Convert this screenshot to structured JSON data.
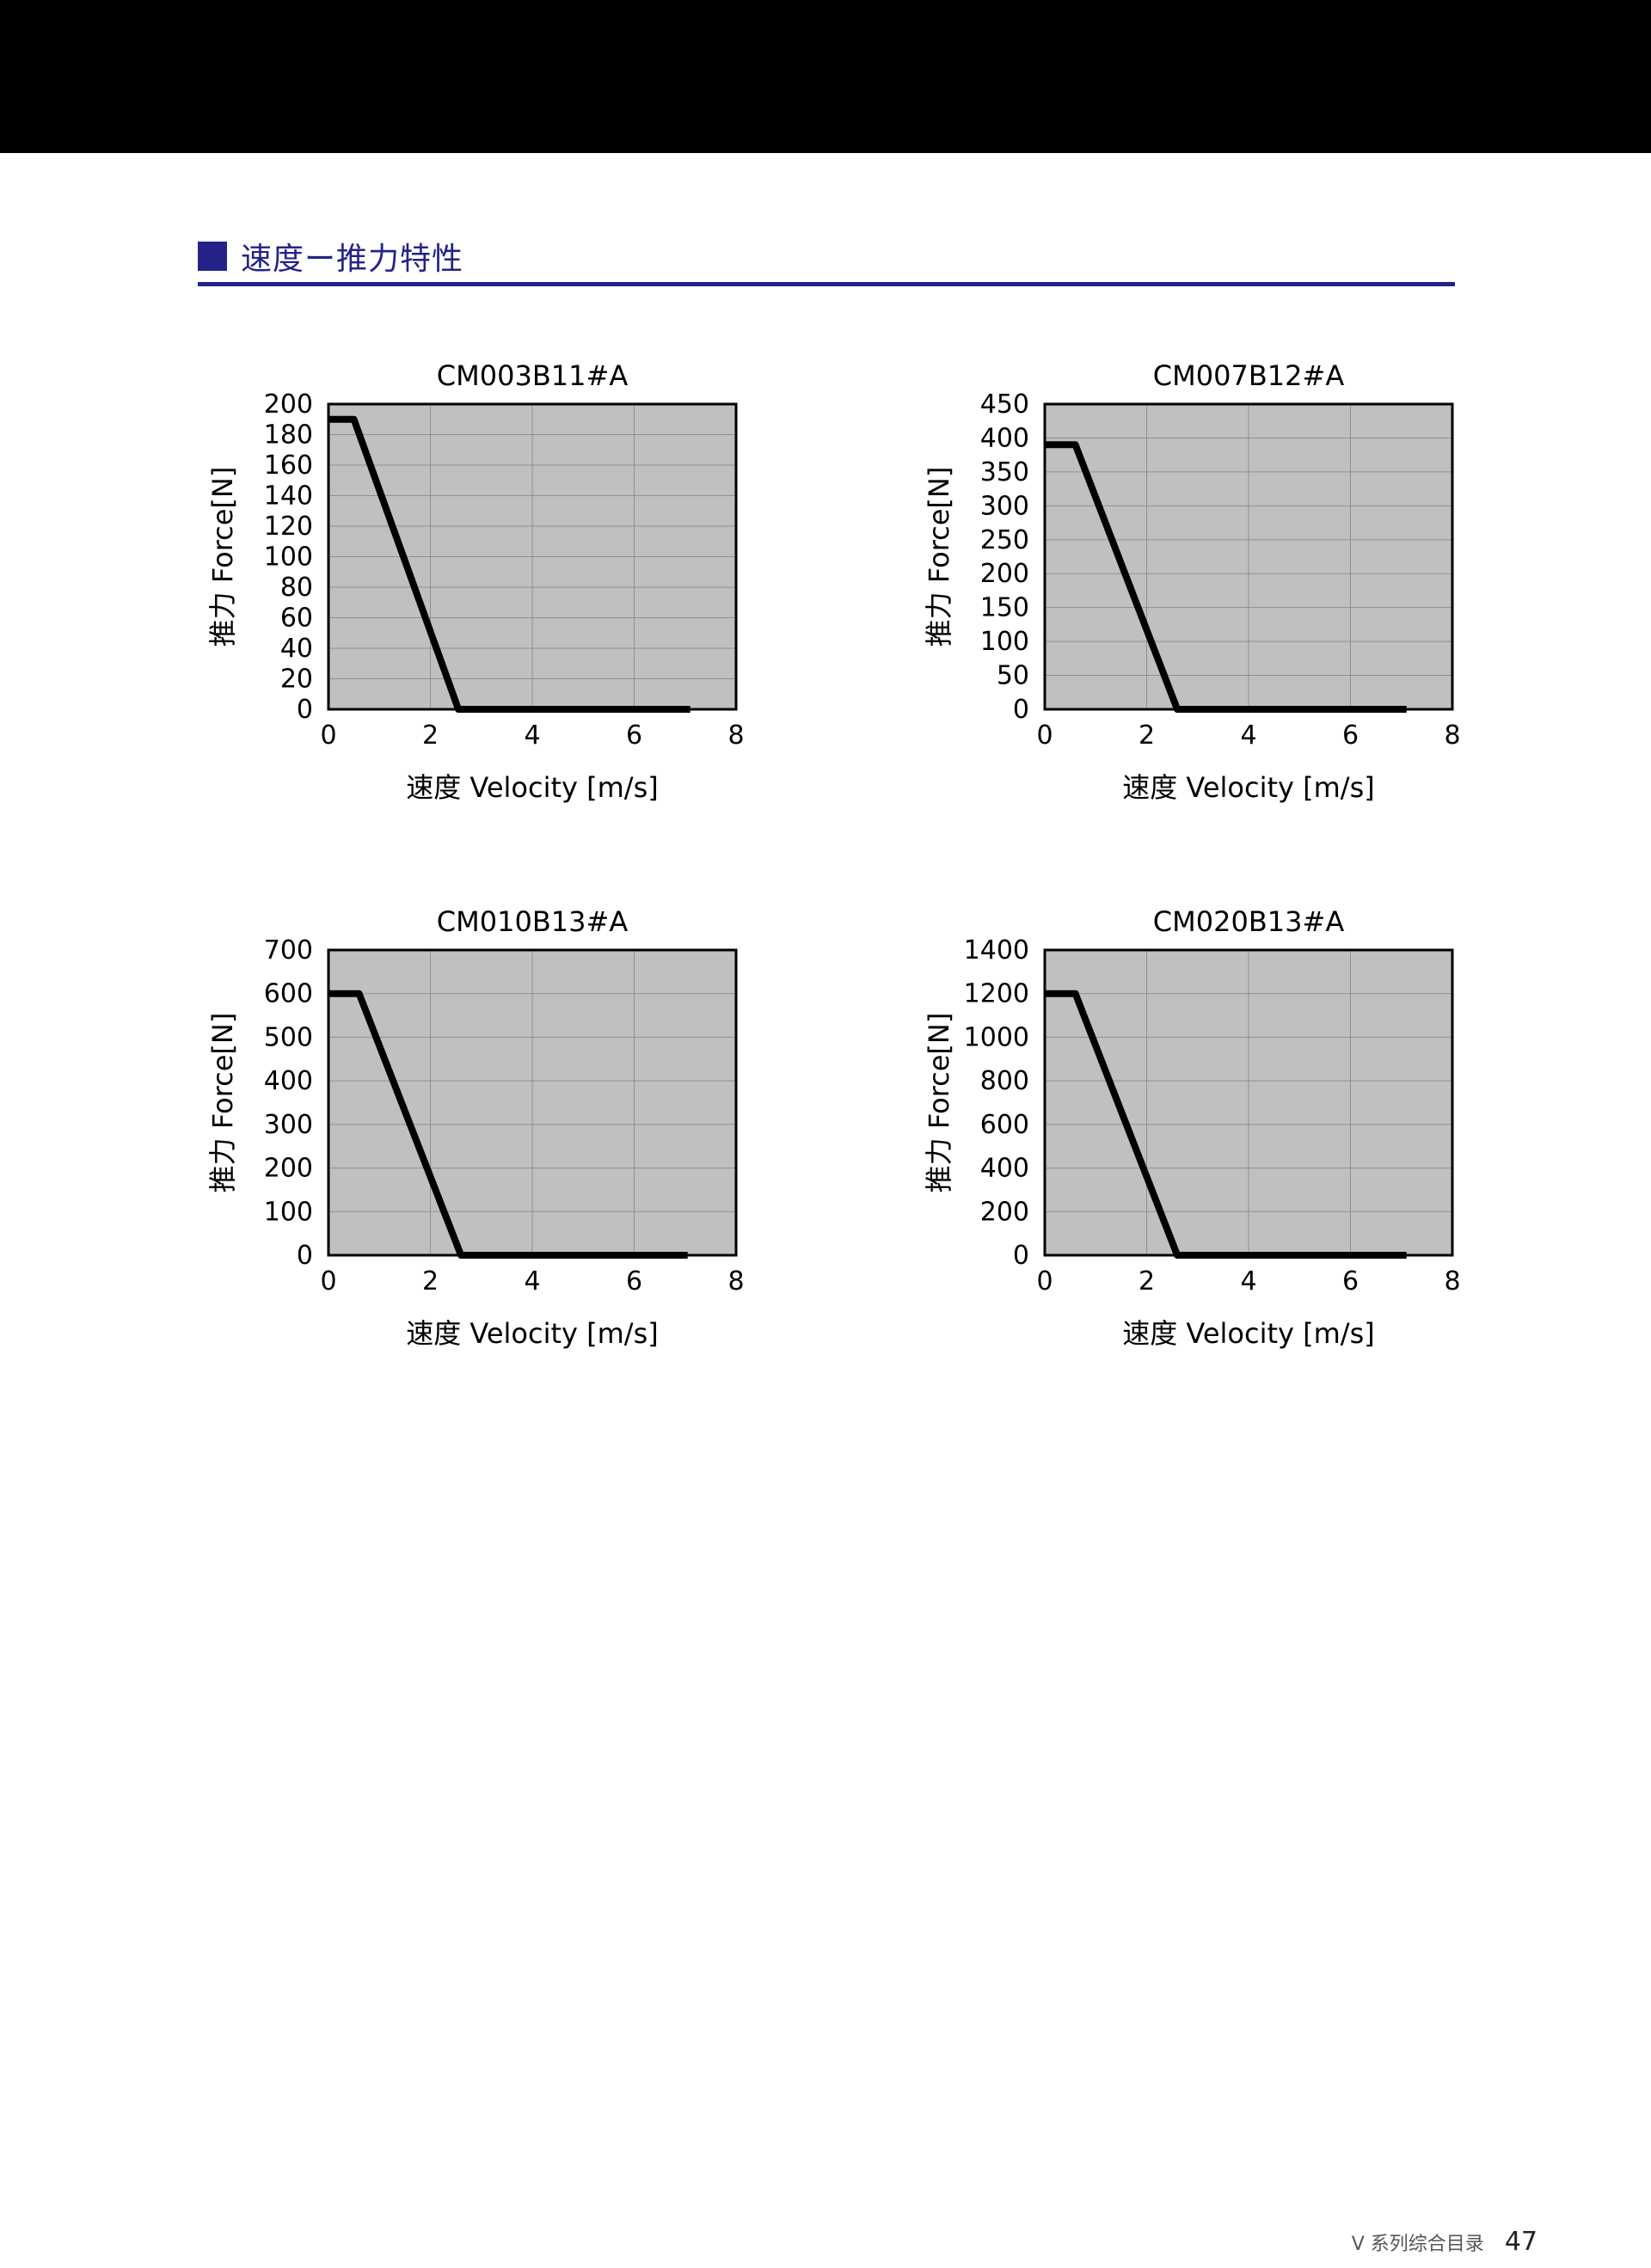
{
  "section_title": "速度ー推力特性",
  "footer": {
    "catalog": "V 系列综合目录",
    "page": "47"
  },
  "colors": {
    "accent": "#23238a",
    "plot_bg": "#c0c0c0",
    "grid": "#8f8f8f",
    "line": "#000000"
  },
  "chart_data": [
    {
      "type": "line",
      "title": "CM003B11#A",
      "xlabel": "速度 Velocity [m/s]",
      "ylabel": "推力 Force[N]",
      "xlim": [
        0,
        8
      ],
      "ylim": [
        0,
        200
      ],
      "x_ticks": [
        "0",
        "2",
        "4",
        "6",
        "8"
      ],
      "y_ticks": [
        "0",
        "20",
        "40",
        "60",
        "80",
        "100",
        "120",
        "140",
        "160",
        "180",
        "200"
      ],
      "grid": true,
      "x": [
        0,
        0.5,
        2.55,
        7.1
      ],
      "y": [
        190,
        190,
        0,
        0
      ]
    },
    {
      "type": "line",
      "title": "CM007B12#A",
      "xlabel": "速度 Velocity [m/s]",
      "ylabel": "推力 Force[N]",
      "xlim": [
        0,
        8
      ],
      "ylim": [
        0,
        450
      ],
      "x_ticks": [
        "0",
        "2",
        "4",
        "6",
        "8"
      ],
      "y_ticks": [
        "0",
        "50",
        "100",
        "150",
        "200",
        "250",
        "300",
        "350",
        "400",
        "450"
      ],
      "grid": true,
      "x": [
        0,
        0.6,
        2.6,
        7.1
      ],
      "y": [
        390,
        390,
        0,
        0
      ]
    },
    {
      "type": "line",
      "title": "CM010B13#A",
      "xlabel": "速度 Velocity [m/s]",
      "ylabel": "推力 Force[N]",
      "xlim": [
        0,
        8
      ],
      "ylim": [
        0,
        700
      ],
      "x_ticks": [
        "0",
        "2",
        "4",
        "6",
        "8"
      ],
      "y_ticks": [
        "0",
        "100",
        "200",
        "300",
        "400",
        "500",
        "600",
        "700"
      ],
      "grid": true,
      "x": [
        0,
        0.6,
        2.6,
        7.05
      ],
      "y": [
        600,
        600,
        0,
        0
      ]
    },
    {
      "type": "line",
      "title": "CM020B13#A",
      "xlabel": "速度 Velocity [m/s]",
      "ylabel": "推力 Force[N]",
      "xlim": [
        0,
        8
      ],
      "ylim": [
        0,
        1400
      ],
      "x_ticks": [
        "0",
        "2",
        "4",
        "6",
        "8"
      ],
      "y_ticks": [
        "0",
        "200",
        "400",
        "600",
        "800",
        "1000",
        "1200",
        "1400"
      ],
      "grid": true,
      "x": [
        0,
        0.6,
        2.6,
        7.1
      ],
      "y": [
        1200,
        1200,
        0,
        0
      ]
    }
  ]
}
